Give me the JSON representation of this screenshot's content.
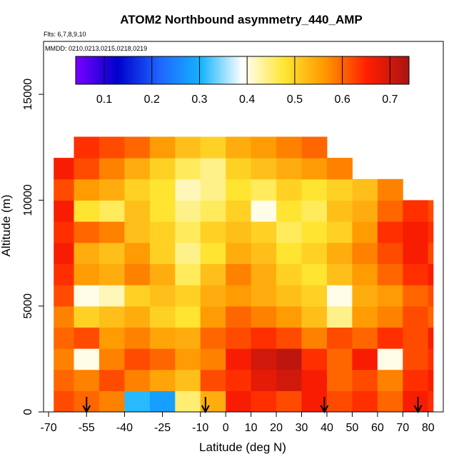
{
  "chart_data": {
    "type": "heatmap",
    "title": "ATOM2 Northbound asymmetry_440_AMP",
    "flights_label": "Flts: 6,7,8,9,10",
    "dates_label": "MMDD: 0210,0213,0215,0218,0219",
    "xlabel": "Latitude (deg N)",
    "ylabel": "Altitude (m)",
    "xlim": [
      -72,
      86
    ],
    "ylim": [
      0,
      17500
    ],
    "xticks": [
      -70,
      -55,
      -40,
      -25,
      -10,
      0,
      10,
      20,
      30,
      40,
      50,
      60,
      70,
      80
    ],
    "yticks": [
      0,
      5000,
      10000,
      15000
    ],
    "colorbar": {
      "vmin": 0.04,
      "vmax": 0.74,
      "ticks": [
        0.1,
        0.2,
        0.3,
        0.4,
        0.5,
        0.6,
        0.7
      ],
      "colors": [
        "#7b00ff",
        "#0000cc",
        "#1e64ff",
        "#14b4ff",
        "#ffffff",
        "#ffe632",
        "#ff9600",
        "#ff1e00",
        "#aa1414"
      ]
    },
    "profile_markers_lat": [
      -55,
      -8,
      39,
      76
    ],
    "data_extent": {
      "lat_min": -68,
      "lat_max": 82
    },
    "altitude_bands_m": [
      0,
      1000,
      2000,
      3000,
      4000,
      5000,
      6000,
      7000,
      8000,
      9000,
      10000,
      11000,
      12000
    ],
    "latitude_bands_deg": [
      -68,
      -60,
      -50,
      -40,
      -30,
      -20,
      -10,
      0,
      10,
      20,
      30,
      40,
      50,
      60,
      70,
      80
    ],
    "values": [
      [
        0.62,
        0.6,
        0.58,
        0.31,
        0.28,
        0.45,
        0.54,
        0.66,
        0.64,
        0.62,
        0.66,
        0.62,
        0.64,
        0.6,
        0.66,
        0.64
      ],
      [
        0.6,
        0.58,
        0.62,
        0.58,
        0.55,
        0.52,
        0.62,
        0.64,
        0.68,
        0.7,
        0.66,
        0.6,
        0.62,
        0.58,
        0.64,
        0.66
      ],
      [
        0.58,
        0.4,
        0.58,
        0.62,
        0.6,
        0.56,
        0.58,
        0.66,
        0.7,
        0.72,
        0.64,
        0.6,
        0.66,
        0.4,
        0.62,
        0.64
      ],
      [
        0.6,
        0.62,
        0.56,
        0.58,
        0.55,
        0.54,
        0.6,
        0.62,
        0.64,
        0.62,
        0.58,
        0.62,
        0.6,
        0.64,
        0.62,
        0.66
      ],
      [
        0.58,
        0.5,
        0.52,
        0.54,
        0.5,
        0.48,
        0.56,
        0.6,
        0.58,
        0.56,
        0.52,
        0.44,
        0.56,
        0.58,
        0.62,
        0.6
      ],
      [
        0.62,
        0.4,
        0.42,
        0.5,
        0.52,
        0.5,
        0.54,
        0.56,
        0.54,
        0.52,
        0.5,
        0.4,
        0.54,
        0.56,
        0.6,
        0.62
      ],
      [
        0.64,
        0.56,
        0.54,
        0.58,
        0.54,
        0.46,
        0.52,
        0.58,
        0.54,
        0.5,
        0.48,
        0.52,
        0.56,
        0.6,
        0.64,
        0.66
      ],
      [
        0.66,
        0.54,
        0.52,
        0.56,
        0.5,
        0.44,
        0.48,
        0.54,
        0.52,
        0.48,
        0.5,
        0.54,
        0.58,
        0.62,
        0.66,
        0.62
      ],
      [
        0.64,
        0.6,
        0.58,
        0.52,
        0.5,
        0.46,
        0.5,
        0.52,
        0.5,
        0.46,
        0.48,
        0.5,
        0.56,
        0.64,
        0.66,
        0.64
      ],
      [
        0.66,
        0.48,
        0.46,
        0.52,
        0.48,
        0.44,
        0.46,
        0.5,
        0.4,
        0.48,
        0.46,
        0.52,
        0.54,
        0.6,
        0.64,
        0.62
      ],
      [
        0.62,
        0.56,
        0.54,
        0.5,
        0.48,
        0.42,
        0.44,
        0.48,
        0.46,
        0.5,
        0.48,
        0.5,
        0.52,
        0.58,
        null,
        null
      ],
      [
        0.66,
        0.62,
        0.58,
        0.54,
        0.5,
        0.46,
        0.44,
        0.5,
        0.52,
        0.54,
        0.56,
        0.58,
        null,
        null,
        null,
        null
      ],
      [
        null,
        0.64,
        0.62,
        0.6,
        0.56,
        0.52,
        0.5,
        0.54,
        0.56,
        0.58,
        0.6,
        null,
        null,
        null,
        null,
        null
      ]
    ]
  }
}
